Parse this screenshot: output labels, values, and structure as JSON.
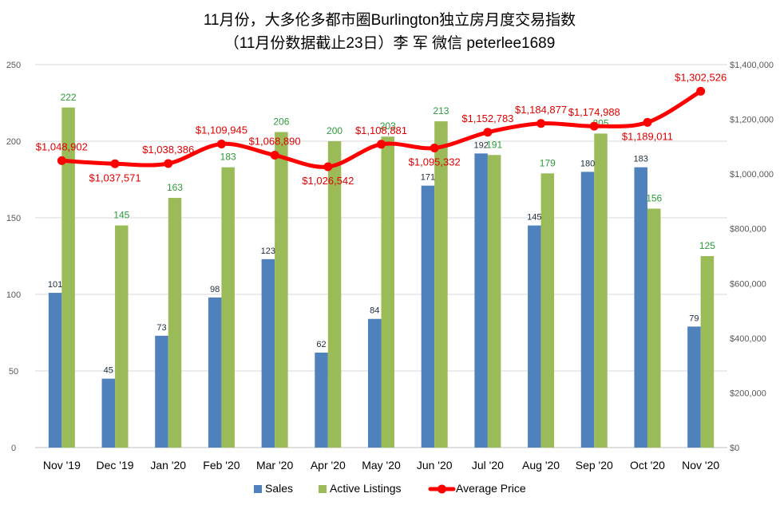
{
  "chart_data": {
    "type": "bar",
    "title": "11月份，大多伦多都市圈Burlington独立房月度交易指数",
    "subtitle": "（11月份数据截止23日）李 军  微信  peterlee1689",
    "categories": [
      "Nov '19",
      "Dec '19",
      "Jan '20",
      "Feb '20",
      "Mar '20",
      "Apr '20",
      "May '20",
      "Jun '20",
      "Jul '20",
      "Aug '20",
      "Sep '20",
      "Oct '20",
      "Nov '20"
    ],
    "series": [
      {
        "name": "Sales",
        "type": "bar",
        "axis": "left",
        "color": "#4f81bd",
        "values": [
          101,
          45,
          73,
          98,
          123,
          62,
          84,
          171,
          192,
          145,
          180,
          183,
          79
        ]
      },
      {
        "name": "Active Listings",
        "type": "bar",
        "axis": "left",
        "color": "#9bbb59",
        "values": [
          222,
          145,
          163,
          183,
          206,
          200,
          203,
          213,
          191,
          179,
          205,
          156,
          125
        ]
      },
      {
        "name": "Average Price",
        "type": "line",
        "axis": "right",
        "color": "#ff0000",
        "values": [
          1048902,
          1037571,
          1038386,
          1109945,
          1068890,
          1026542,
          1108881,
          1095332,
          1152783,
          1184877,
          1174988,
          1189011,
          1302526
        ],
        "labels": [
          "$1,048,902",
          "$1,037,571",
          "$1,038,386",
          "$1,109,945",
          "$1,068,890",
          "$1,026,542",
          "$1,108,881",
          "$1,095,332",
          "$1,152,783",
          "$1,184,877",
          "$1,174,988",
          "$1,189,011",
          "$1,302,526"
        ]
      }
    ],
    "y_left": {
      "min": 0,
      "max": 250,
      "ticks": [
        "0",
        "50",
        "100",
        "150",
        "200",
        "250"
      ]
    },
    "y_right": {
      "min": 0,
      "max": 1400000,
      "ticks": [
        "$0",
        "$200,000",
        "$400,000",
        "$600,000",
        "$800,000",
        "$1,000,000",
        "$1,200,000",
        "$1,400,000"
      ]
    },
    "grid": true,
    "legend": "bottom"
  }
}
